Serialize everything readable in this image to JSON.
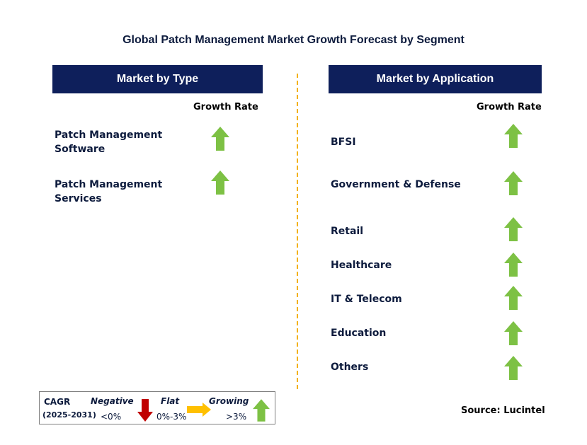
{
  "title": "Global Patch Management Market Growth Forecast by Segment",
  "left_panel": {
    "header": "Market by Type",
    "growth_rate_label": "Growth Rate",
    "items": [
      {
        "label_line1": "Patch Management",
        "label_line2": "Software",
        "trend": "growing"
      },
      {
        "label_line1": "Patch Management",
        "label_line2": "Services",
        "trend": "growing"
      }
    ]
  },
  "right_panel": {
    "header": "Market by Application",
    "growth_rate_label": "Growth Rate",
    "items": [
      {
        "label": "BFSI",
        "trend": "growing"
      },
      {
        "label": "Government & Defense",
        "trend": "growing"
      },
      {
        "label": "Retail",
        "trend": "growing"
      },
      {
        "label": "Healthcare",
        "trend": "growing"
      },
      {
        "label": "IT & Telecom",
        "trend": "growing"
      },
      {
        "label": "Education",
        "trend": "growing"
      },
      {
        "label": "Others",
        "trend": "growing"
      }
    ]
  },
  "legend": {
    "cagr_label": "CAGR",
    "period": "(2025-2031)",
    "negative_label": "Negative",
    "negative_range": "<0%",
    "flat_label": "Flat",
    "flat_range": "0%-3%",
    "growing_label": "Growing",
    "growing_range": ">3%"
  },
  "source": "Source: Lucintel",
  "colors": {
    "header_bg": "#0e1f5b",
    "growing": "#7dc144",
    "negative": "#c00000",
    "flat": "#ffc000",
    "divider": "#f2b21c"
  },
  "icons": {
    "growing": "up-arrow-icon",
    "negative": "down-arrow-icon",
    "flat": "right-arrow-icon"
  }
}
